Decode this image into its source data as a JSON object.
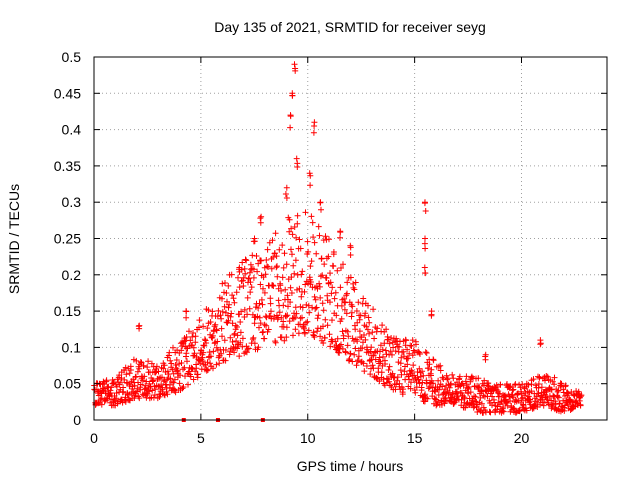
{
  "chart_data": {
    "type": "scatter",
    "title": "Day 135 of 2021, SRMTID for receiver seyg",
    "xlabel": "GPS time / hours",
    "ylabel": "SRMTID / TECUs",
    "xlim": [
      0,
      24
    ],
    "ylim": [
      0,
      0.5
    ],
    "xticks": [
      0,
      5,
      10,
      15,
      20
    ],
    "yticks": [
      0,
      0.05,
      0.1,
      0.15,
      0.2,
      0.25,
      0.3,
      0.35,
      0.4,
      0.45,
      0.5
    ],
    "xtick_labels": [
      "0",
      "5",
      "10",
      "15",
      "20"
    ],
    "ytick_labels": [
      "0",
      "0.05",
      "0.1",
      "0.15",
      "0.2",
      "0.25",
      "0.3",
      "0.35",
      "0.4",
      "0.45",
      "0.5"
    ],
    "grid": true,
    "marker": "+",
    "series_color": "#ff0000",
    "x_range_observed": [
      0,
      22.8
    ],
    "envelope": [
      {
        "x": 0.0,
        "lo": 0.02,
        "hi": 0.05
      },
      {
        "x": 1.0,
        "lo": 0.02,
        "hi": 0.06
      },
      {
        "x": 2.0,
        "lo": 0.03,
        "hi": 0.09
      },
      {
        "x": 3.0,
        "lo": 0.03,
        "hi": 0.08
      },
      {
        "x": 4.0,
        "lo": 0.04,
        "hi": 0.11
      },
      {
        "x": 5.0,
        "lo": 0.06,
        "hi": 0.14
      },
      {
        "x": 6.0,
        "lo": 0.08,
        "hi": 0.19
      },
      {
        "x": 7.0,
        "lo": 0.09,
        "hi": 0.22
      },
      {
        "x": 8.0,
        "lo": 0.1,
        "hi": 0.24
      },
      {
        "x": 9.0,
        "lo": 0.11,
        "hi": 0.28
      },
      {
        "x": 10.0,
        "lo": 0.12,
        "hi": 0.29
      },
      {
        "x": 11.0,
        "lo": 0.1,
        "hi": 0.25
      },
      {
        "x": 12.0,
        "lo": 0.08,
        "hi": 0.2
      },
      {
        "x": 13.0,
        "lo": 0.06,
        "hi": 0.16
      },
      {
        "x": 14.0,
        "lo": 0.04,
        "hi": 0.12
      },
      {
        "x": 15.0,
        "lo": 0.03,
        "hi": 0.11
      },
      {
        "x": 16.0,
        "lo": 0.02,
        "hi": 0.08
      },
      {
        "x": 17.0,
        "lo": 0.02,
        "hi": 0.06
      },
      {
        "x": 18.0,
        "lo": 0.01,
        "hi": 0.06
      },
      {
        "x": 19.0,
        "lo": 0.01,
        "hi": 0.05
      },
      {
        "x": 20.0,
        "lo": 0.01,
        "hi": 0.05
      },
      {
        "x": 21.0,
        "lo": 0.02,
        "hi": 0.07
      },
      {
        "x": 22.0,
        "lo": 0.01,
        "hi": 0.05
      },
      {
        "x": 22.8,
        "lo": 0.02,
        "hi": 0.04
      }
    ],
    "spikes": [
      {
        "x": 2.1,
        "y": 0.13
      },
      {
        "x": 4.3,
        "y": 0.15
      },
      {
        "x": 6.8,
        "y": 0.21
      },
      {
        "x": 7.5,
        "y": 0.25
      },
      {
        "x": 7.8,
        "y": 0.28
      },
      {
        "x": 9.0,
        "y": 0.32
      },
      {
        "x": 9.2,
        "y": 0.42
      },
      {
        "x": 9.3,
        "y": 0.45
      },
      {
        "x": 9.4,
        "y": 0.49
      },
      {
        "x": 9.5,
        "y": 0.36
      },
      {
        "x": 10.1,
        "y": 0.34
      },
      {
        "x": 10.3,
        "y": 0.41
      },
      {
        "x": 10.6,
        "y": 0.3
      },
      {
        "x": 11.5,
        "y": 0.26
      },
      {
        "x": 12.0,
        "y": 0.24
      },
      {
        "x": 15.5,
        "y": 0.3
      },
      {
        "x": 15.5,
        "y": 0.25
      },
      {
        "x": 15.5,
        "y": 0.21
      },
      {
        "x": 15.8,
        "y": 0.15
      },
      {
        "x": 18.3,
        "y": 0.09
      },
      {
        "x": 20.9,
        "y": 0.11
      }
    ],
    "zero_markers": [
      4.2,
      5.8,
      7.9
    ]
  }
}
